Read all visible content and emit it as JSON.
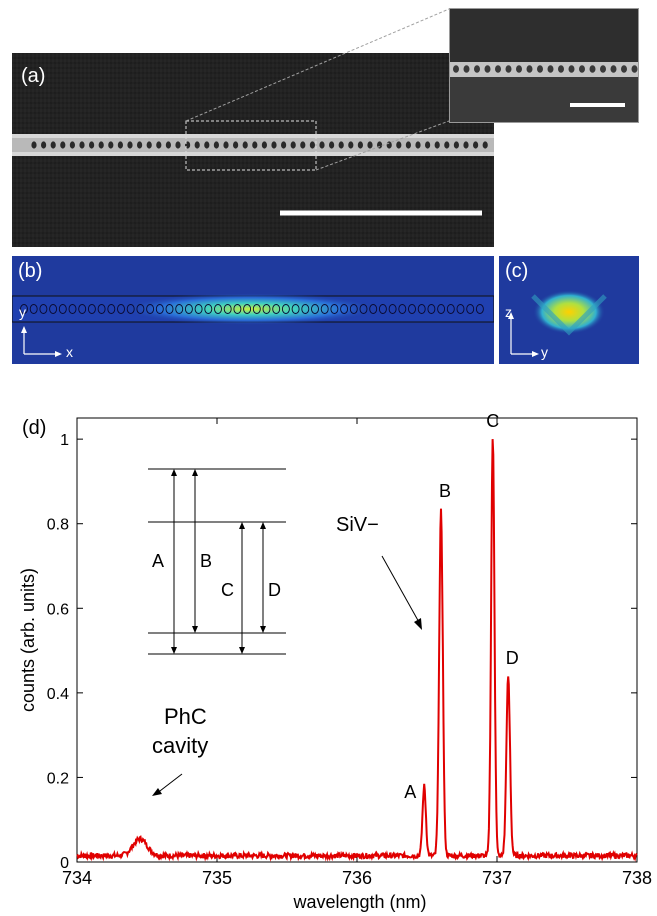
{
  "panels": {
    "a": {
      "label": "(a)"
    },
    "b": {
      "label": "(b)",
      "axes": {
        "vertical": "y",
        "horizontal": "x"
      }
    },
    "c": {
      "label": "(c)",
      "axes": {
        "vertical": "z",
        "horizontal": "y"
      }
    },
    "d": {
      "label": "(d)"
    }
  },
  "chart_data": {
    "type": "line",
    "xlabel": "wavelength (nm)",
    "ylabel": "counts (arb. units)",
    "xlim": [
      734,
      738
    ],
    "ylim": [
      0,
      1.05
    ],
    "xticks": [
      734,
      735,
      736,
      737,
      738
    ],
    "yticks": [
      0,
      0.2,
      0.4,
      0.6,
      0.8,
      1
    ],
    "ytick_labels": [
      "0",
      "0.2",
      "0.4",
      "0.6",
      "0.8",
      "1"
    ],
    "baseline": 0.015,
    "peaks": [
      {
        "label": "PhC cavity",
        "x": 734.45,
        "y": 0.055,
        "width": 0.05
      },
      {
        "label": "A",
        "x": 736.48,
        "y": 0.18,
        "width": 0.012
      },
      {
        "label": "B",
        "x": 736.6,
        "y": 0.83,
        "width": 0.013
      },
      {
        "label": "C",
        "x": 736.97,
        "y": 1.0,
        "width": 0.012
      },
      {
        "label": "D",
        "x": 737.08,
        "y": 0.44,
        "width": 0.013
      }
    ],
    "series": [
      {
        "color": "#e00000"
      }
    ],
    "annotations": {
      "siv": "SiV−",
      "phc_line1": "PhC",
      "phc_line2": "cavity"
    },
    "energy_diagram": {
      "transitions": [
        "A",
        "B",
        "C",
        "D"
      ]
    },
    "grid": false
  }
}
